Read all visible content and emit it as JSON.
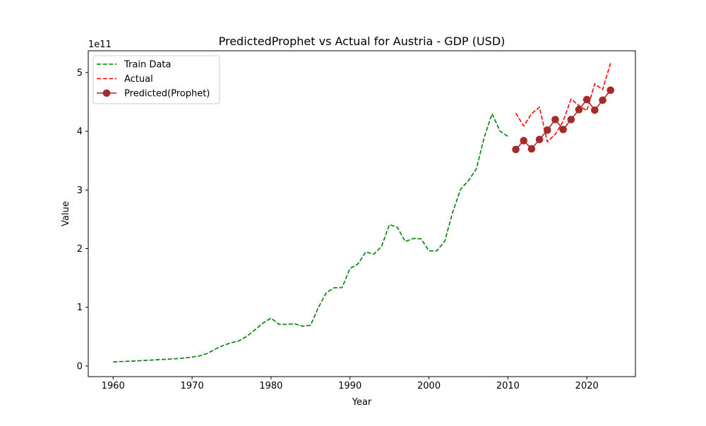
{
  "chart_data": {
    "type": "line",
    "title": "PredictedProphet vs Actual for Austria - GDP (USD)",
    "xlabel": "Year",
    "ylabel": "Value",
    "y_offset_text": "1e11",
    "xlim": [
      1956.85,
      2026.15
    ],
    "ylim": [
      -0.182,
      5.372
    ],
    "x_ticks": [
      1960,
      1970,
      1980,
      1990,
      2000,
      2010,
      2020
    ],
    "y_ticks": [
      0,
      1,
      2,
      3,
      4,
      5
    ],
    "y_tick_labels": [
      "0",
      "1",
      "2",
      "3",
      "4",
      "5"
    ],
    "y_scale_note": "values in units of 1e11 USD",
    "legend_position": "upper-left",
    "grid": false,
    "series": [
      {
        "name": "Train Data",
        "color": "#008000",
        "style": "dashed",
        "marker": "none",
        "x": [
          1960,
          1961,
          1962,
          1963,
          1964,
          1965,
          1966,
          1967,
          1968,
          1969,
          1970,
          1971,
          1972,
          1973,
          1974,
          1975,
          1976,
          1977,
          1978,
          1979,
          1980,
          1981,
          1982,
          1983,
          1984,
          1985,
          1986,
          1987,
          1988,
          1989,
          1990,
          1991,
          1992,
          1993,
          1994,
          1995,
          1996,
          1997,
          1998,
          1999,
          2000,
          2001,
          2002,
          2003,
          2004,
          2005,
          2006,
          2007,
          2008,
          2009,
          2010
        ],
        "values": [
          0.07,
          0.075,
          0.08,
          0.086,
          0.094,
          0.101,
          0.109,
          0.116,
          0.124,
          0.135,
          0.151,
          0.173,
          0.217,
          0.292,
          0.352,
          0.397,
          0.43,
          0.512,
          0.619,
          0.731,
          0.815,
          0.71,
          0.709,
          0.718,
          0.677,
          0.693,
          0.997,
          1.248,
          1.333,
          1.335,
          1.661,
          1.737,
          1.946,
          1.903,
          2.036,
          2.41,
          2.364,
          2.12,
          2.172,
          2.167,
          1.962,
          1.962,
          2.127,
          2.617,
          3.008,
          3.16,
          3.356,
          3.895,
          4.3,
          4.002,
          3.914
        ]
      },
      {
        "name": "Actual",
        "color": "#ff0000",
        "style": "dashed",
        "marker": "none",
        "x": [
          2011,
          2012,
          2013,
          2014,
          2015,
          2016,
          2017,
          2018,
          2019,
          2020,
          2021,
          2022,
          2023
        ],
        "values": [
          4.31,
          4.09,
          4.3,
          4.41,
          3.82,
          3.95,
          4.17,
          4.55,
          4.44,
          4.35,
          4.81,
          4.71,
          5.16
        ]
      },
      {
        "name": "Predicted(Prophet)",
        "color": "#a52a2a",
        "style": "solid",
        "marker": "circle",
        "x": [
          2011,
          2012,
          2013,
          2014,
          2015,
          2016,
          2017,
          2018,
          2019,
          2020,
          2021,
          2022,
          2023
        ],
        "values": [
          3.69,
          3.84,
          3.7,
          3.86,
          4.02,
          4.2,
          4.03,
          4.2,
          4.37,
          4.54,
          4.36,
          4.53,
          4.7
        ]
      }
    ]
  }
}
